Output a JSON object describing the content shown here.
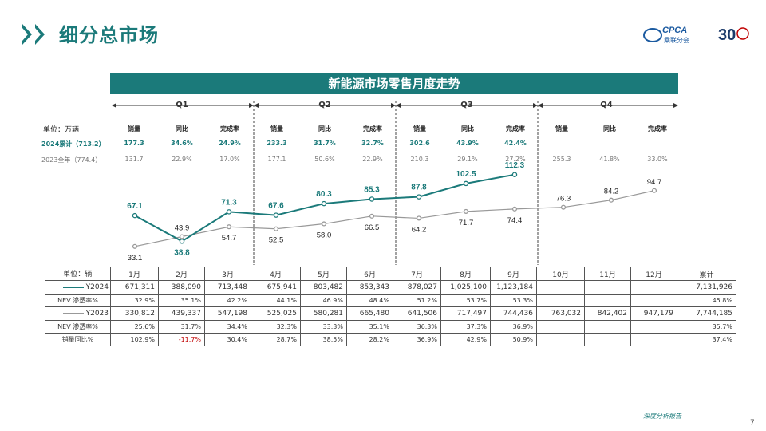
{
  "header": {
    "title": "细分总市场",
    "logo_text": "CPCA",
    "logo_sub": "乘联分会",
    "anniv": "30"
  },
  "chart_title": "新能源市场零售月度走势",
  "quarters": [
    "Q1",
    "Q2",
    "Q3",
    "Q4"
  ],
  "kpi": {
    "unit_label": "单位：万辆",
    "col_headers": [
      "销量",
      "同比",
      "完成率"
    ],
    "row_2024": {
      "label": "2024累计（713.2）",
      "values": [
        [
          "177.3",
          "34.6%",
          "24.9%"
        ],
        [
          "233.3",
          "31.7%",
          "32.7%"
        ],
        [
          "302.6",
          "43.9%",
          "42.4%"
        ],
        [
          "",
          "",
          ""
        ]
      ]
    },
    "row_2023": {
      "label": "2023全年（774.4）",
      "values": [
        [
          "131.7",
          "22.9%",
          "17.0%"
        ],
        [
          "177.1",
          "50.6%",
          "22.9%"
        ],
        [
          "210.3",
          "29.1%",
          "27.2%"
        ],
        [
          "255.3",
          "41.8%",
          "33.0%"
        ]
      ]
    }
  },
  "chart_data": {
    "type": "line",
    "categories": [
      "1月",
      "2月",
      "3月",
      "4月",
      "5月",
      "6月",
      "7月",
      "8月",
      "9月",
      "10月",
      "11月",
      "12月"
    ],
    "series": [
      {
        "name": "Y2024",
        "color": "#1b7a7a",
        "values": [
          67.1,
          38.8,
          71.3,
          67.6,
          80.3,
          85.3,
          87.8,
          102.5,
          112.3,
          null,
          null,
          null
        ]
      },
      {
        "name": "Y2023",
        "color": "#999999",
        "values": [
          33.1,
          43.9,
          54.7,
          52.5,
          58.0,
          66.5,
          64.2,
          71.7,
          74.4,
          76.3,
          84.2,
          94.7
        ]
      }
    ],
    "ylim": [
      25,
      120
    ],
    "labels_2024": [
      "67.1",
      "38.8",
      "71.3",
      "67.6",
      "80.3",
      "85.3",
      "87.8",
      "102.5",
      "112.3"
    ],
    "labels_2023": [
      "33.1",
      "43.9",
      "54.7",
      "52.5",
      "58.0",
      "66.5",
      "64.2",
      "71.7",
      "74.4",
      "76.3",
      "84.2",
      "94.7"
    ]
  },
  "table": {
    "unit_label": "单位：辆",
    "total_header": "累计",
    "months": [
      "1月",
      "2月",
      "3月",
      "4月",
      "5月",
      "6月",
      "7月",
      "8月",
      "9月",
      "10月",
      "11月",
      "12月"
    ],
    "rows": [
      {
        "label": "Y2024",
        "cells": [
          "671,311",
          "388,090",
          "713,448",
          "675,941",
          "803,482",
          "853,343",
          "878,027",
          "1,025,100",
          "1,123,184",
          "",
          "",
          ""
        ],
        "total": "7,131,926"
      },
      {
        "label": "NEV 渗透率%",
        "cells": [
          "32.9%",
          "35.1%",
          "42.2%",
          "44.1%",
          "46.9%",
          "48.4%",
          "51.2%",
          "53.7%",
          "53.3%",
          "",
          "",
          ""
        ],
        "total": "45.8%"
      },
      {
        "label": "Y2023",
        "cells": [
          "330,812",
          "439,337",
          "547,198",
          "525,025",
          "580,281",
          "665,480",
          "641,506",
          "717,497",
          "744,436",
          "763,032",
          "842,402",
          "947,179"
        ],
        "total": "7,744,185"
      },
      {
        "label": "NEV 渗透率%",
        "cells": [
          "25.6%",
          "31.7%",
          "34.4%",
          "32.3%",
          "33.3%",
          "35.1%",
          "36.3%",
          "37.3%",
          "36.9%",
          "",
          "",
          ""
        ],
        "total": "35.7%"
      },
      {
        "label": "销量同比%",
        "cells": [
          "102.9%",
          "-11.7%",
          "30.4%",
          "28.7%",
          "38.5%",
          "28.2%",
          "36.9%",
          "42.9%",
          "50.9%",
          "",
          "",
          ""
        ],
        "total": "37.4%"
      }
    ]
  },
  "footer": {
    "text": "深度分析报告",
    "page": "7"
  },
  "colors": {
    "accent": "#1b7a7a",
    "y2023": "#999999",
    "negative": "#c00000"
  }
}
